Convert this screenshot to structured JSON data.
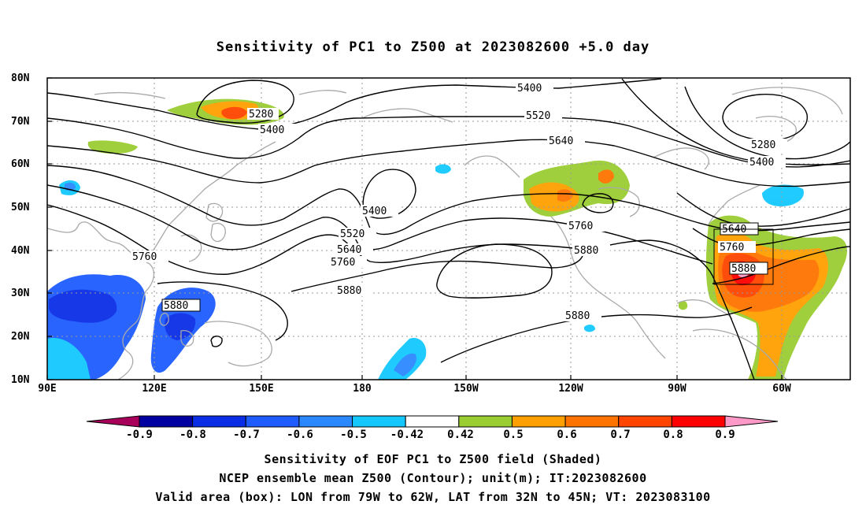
{
  "title": "Sensitivity of PC1 to Z500 at 2023082600 +5.0 day",
  "lat_labels": [
    "80N",
    "70N",
    "60N",
    "50N",
    "40N",
    "30N",
    "20N",
    "10N"
  ],
  "lon_labels": [
    "90E",
    "120E",
    "150E",
    "180",
    "150W",
    "120W",
    "90W",
    "60W"
  ],
  "contour_labels": {
    "c5280a": "5280",
    "c5400a": "5400",
    "c5400b": "5400",
    "c5520a": "5520",
    "c5640a": "5640",
    "c5760a": "5760",
    "c5880a": "5880",
    "c5400c": "5400",
    "c5520b": "5520",
    "c5640b": "5640",
    "c5760b": "5760",
    "c5880b": "5880",
    "c5880c": "5880",
    "c5880d": "5880",
    "c5760c": "5760",
    "c5880e": "5880",
    "c5280b": "5280",
    "c5400d": "5400",
    "c5640c": "5640",
    "c5760d": "5760",
    "c5880f": "5880"
  },
  "colorbar": {
    "labels": [
      "-0.9",
      "-0.8",
      "-0.7",
      "-0.6",
      "-0.5",
      "-0.42",
      "0.42",
      "0.5",
      "0.6",
      "0.7",
      "0.8",
      "0.9"
    ],
    "colors": [
      "#a8005a",
      "#0000a0",
      "#0a2ee6",
      "#1e5cff",
      "#2c88ff",
      "#14c8ff",
      "#ffffff",
      "#9acd32",
      "#ffa000",
      "#ff7300",
      "#ff4500",
      "#ff0000",
      "#ff9ac8"
    ]
  },
  "captions": {
    "line1": "Sensitivity of EOF PC1 to Z500 field (Shaded)",
    "line2": "NCEP ensemble mean Z500 (Contour); unit(m); IT:2023082600",
    "line3": "Valid area (box): LON from 79W to 62W, LAT from 32N to 45N; VT: 2023083100"
  }
}
